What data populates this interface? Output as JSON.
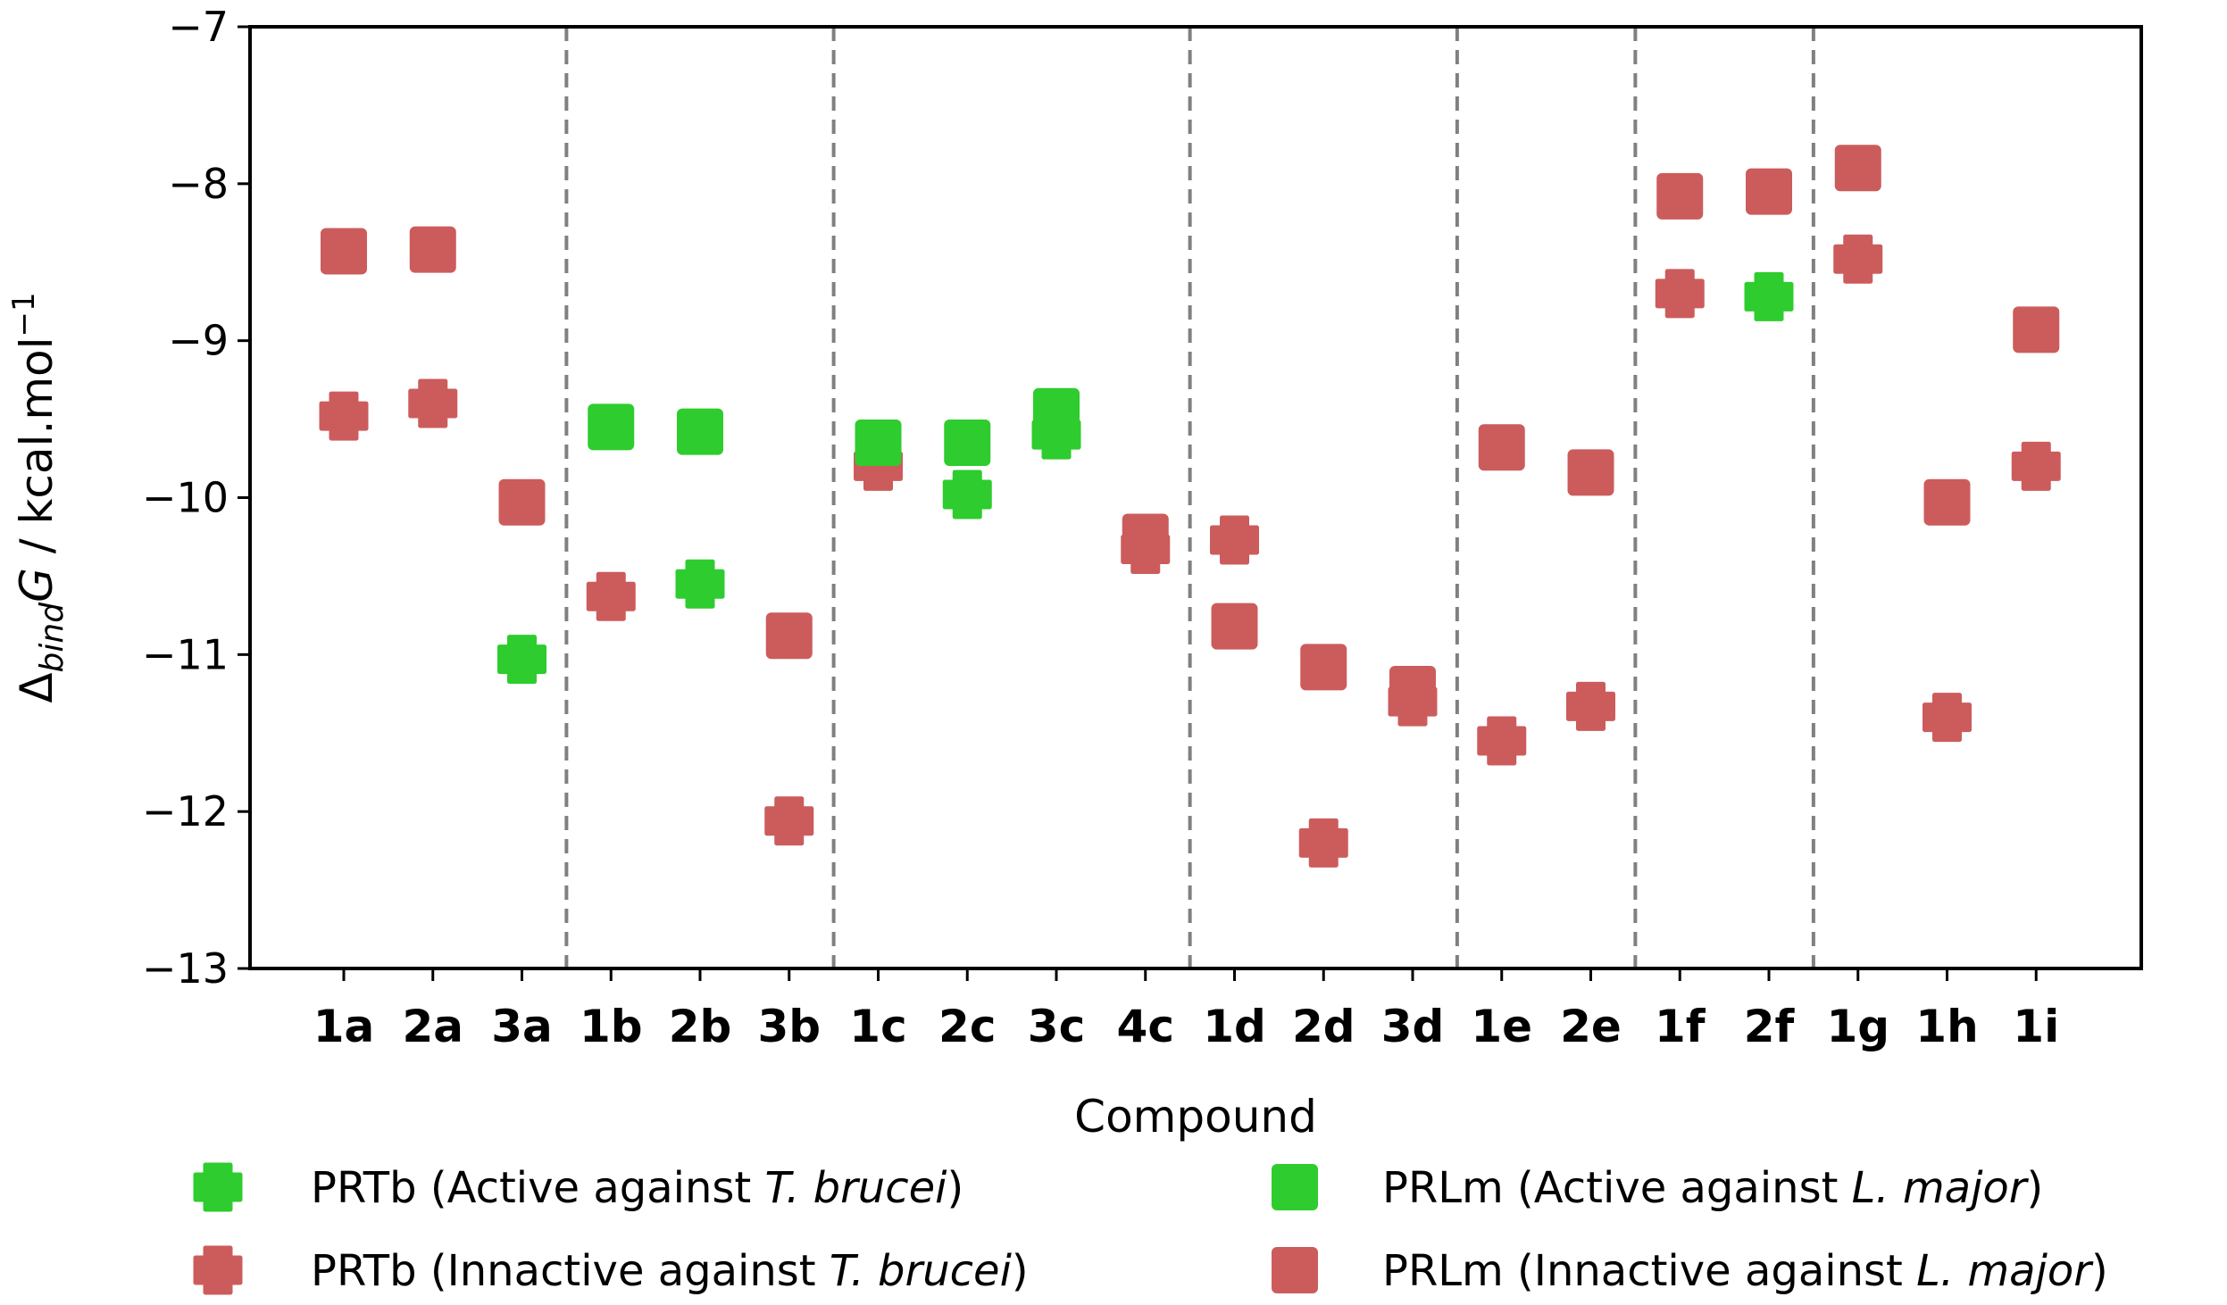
{
  "chart_data": {
    "type": "scatter",
    "xlabel": "Compound",
    "ylabel": {
      "symbol": "Δ",
      "sub": "bind",
      "var": "G",
      "unit": " / kcal.mol",
      "sup": "−1"
    },
    "ylim": [
      -13,
      -7
    ],
    "yticks": [
      {
        "value": -7,
        "label": "−7"
      },
      {
        "value": -8,
        "label": "−8"
      },
      {
        "value": -9,
        "label": "−9"
      },
      {
        "value": -10,
        "label": "−10"
      },
      {
        "value": -11,
        "label": "−11"
      },
      {
        "value": -12,
        "label": "−12"
      },
      {
        "value": -13,
        "label": "−13"
      }
    ],
    "categories": [
      "1a",
      "2a",
      "3a",
      "1b",
      "2b",
      "3b",
      "1c",
      "2c",
      "3c",
      "4c",
      "1d",
      "2d",
      "3d",
      "1e",
      "2e",
      "1f",
      "2f",
      "1g",
      "1h",
      "1i"
    ],
    "group_separators_after": [
      "3a",
      "3b",
      "4c",
      "3d",
      "2e",
      "2f"
    ],
    "colors": {
      "active": "#2ecc2e",
      "inactive": "#cc5c5c",
      "separator": "#808080"
    },
    "series": [
      {
        "name": "PRTb",
        "marker": "plus",
        "values": [
          -9.48,
          -9.4,
          -11.03,
          -10.63,
          -10.55,
          -12.06,
          -9.8,
          -9.98,
          -9.6,
          -10.33,
          -10.27,
          -12.2,
          -11.3,
          -11.55,
          -11.33,
          -8.7,
          -8.72,
          -8.48,
          -11.4,
          -9.8
        ],
        "active": [
          false,
          false,
          true,
          false,
          true,
          false,
          false,
          true,
          true,
          false,
          false,
          false,
          false,
          false,
          false,
          false,
          true,
          false,
          false,
          false
        ]
      },
      {
        "name": "PRLm",
        "marker": "square",
        "values": [
          -8.43,
          -8.42,
          -10.03,
          -9.55,
          -9.58,
          -10.88,
          -9.65,
          -9.65,
          -9.45,
          -10.25,
          -10.82,
          -11.08,
          -11.22,
          -9.68,
          -9.84,
          -8.08,
          -8.05,
          -7.9,
          -10.03,
          -8.93
        ],
        "active": [
          false,
          false,
          false,
          true,
          true,
          false,
          true,
          true,
          true,
          false,
          false,
          false,
          false,
          false,
          false,
          false,
          false,
          false,
          false,
          false
        ]
      }
    ],
    "legend": [
      {
        "marker": "plus",
        "status": "active",
        "prefix": "PRTb (Active against ",
        "species": "T. brucei",
        "suffix": ")"
      },
      {
        "marker": "square",
        "status": "active",
        "prefix": "PRLm (Active against ",
        "species": "L. major",
        "suffix": ")"
      },
      {
        "marker": "plus",
        "status": "inactive",
        "prefix": "PRTb (Innactive against ",
        "species": "T. brucei",
        "suffix": ")"
      },
      {
        "marker": "square",
        "status": "inactive",
        "prefix": "PRLm (Innactive against ",
        "species": "L. major",
        "suffix": ")"
      }
    ]
  }
}
